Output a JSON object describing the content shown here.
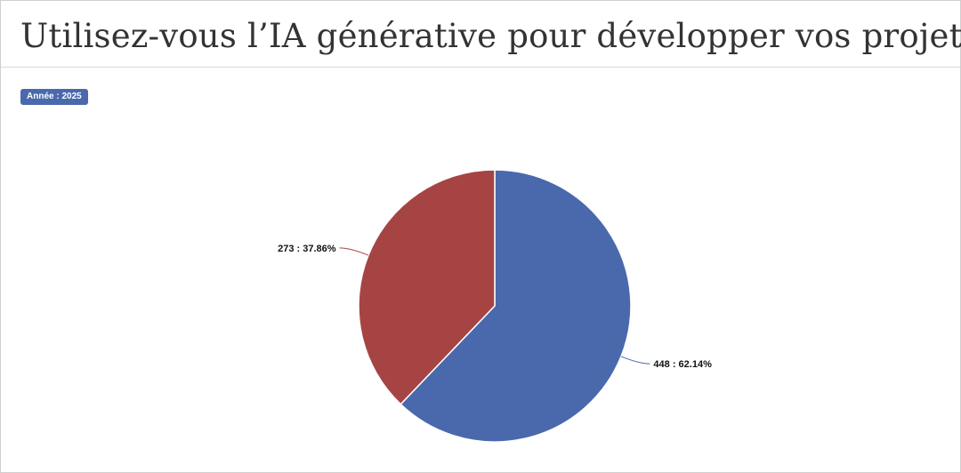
{
  "title": "Utilisez-vous l’IA générative pour développer vos projets?",
  "badge": "Année : 2025",
  "colors": {
    "accent": "#4a69ad",
    "series_blue": "#4a69ad",
    "series_red": "#a64444"
  },
  "chart_data": {
    "type": "pie",
    "title": "Utilisez-vous l’IA générative pour développer vos projets?",
    "slices": [
      {
        "value": 448,
        "percent": 62.14,
        "label": "448 : 62.14%",
        "color": "#4a69ad"
      },
      {
        "value": 273,
        "percent": 37.86,
        "label": "273 : 37.86%",
        "color": "#a64444"
      }
    ]
  }
}
